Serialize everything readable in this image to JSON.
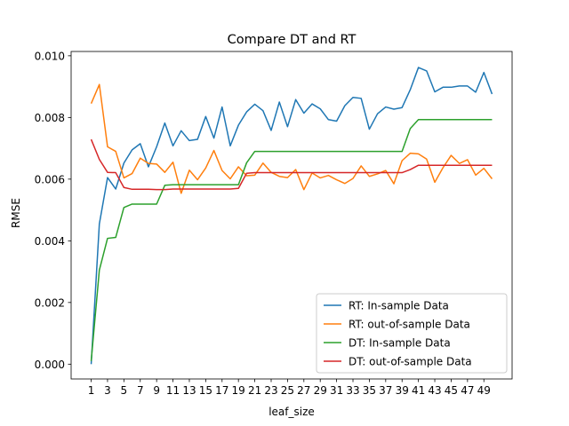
{
  "chart_data": {
    "type": "line",
    "title": "Compare DT and RT",
    "xlabel": "leaf_size",
    "ylabel": "RMSE",
    "x": [
      1,
      2,
      3,
      4,
      5,
      6,
      7,
      8,
      9,
      10,
      11,
      12,
      13,
      14,
      15,
      16,
      17,
      18,
      19,
      20,
      21,
      22,
      23,
      24,
      25,
      26,
      27,
      28,
      29,
      30,
      31,
      32,
      33,
      34,
      35,
      36,
      37,
      38,
      39,
      40,
      41,
      42,
      43,
      44,
      45,
      46,
      47,
      48,
      49,
      50
    ],
    "xticks": [
      "1",
      "3",
      "5",
      "7",
      "9",
      "11",
      "13",
      "15",
      "17",
      "19",
      "21",
      "23",
      "25",
      "27",
      "29",
      "31",
      "33",
      "35",
      "37",
      "39",
      "41",
      "43",
      "45",
      "47",
      "49"
    ],
    "yticks": [
      "0.000",
      "0.002",
      "0.004",
      "0.006",
      "0.008",
      "0.010"
    ],
    "xlim": [
      -1.45,
      52.45
    ],
    "ylim": [
      -0.00048,
      0.01014
    ],
    "grid": false,
    "legend_position": "lower-right",
    "series": [
      {
        "name": "RT: In-sample Data",
        "color": "#1f77b4",
        "values": [
          0.0,
          0.00455,
          0.00605,
          0.00568,
          0.00652,
          0.00695,
          0.00715,
          0.0064,
          0.00705,
          0.00782,
          0.00708,
          0.00757,
          0.00725,
          0.00729,
          0.00803,
          0.00733,
          0.00834,
          0.00708,
          0.00775,
          0.00818,
          0.00843,
          0.00822,
          0.00758,
          0.0085,
          0.0077,
          0.00858,
          0.00814,
          0.00844,
          0.00828,
          0.00793,
          0.00788,
          0.00838,
          0.00865,
          0.00862,
          0.00762,
          0.00812,
          0.00834,
          0.00827,
          0.00832,
          0.0089,
          0.00962,
          0.00951,
          0.00883,
          0.00898,
          0.00898,
          0.00902,
          0.00902,
          0.00882,
          0.00946,
          0.00876
        ]
      },
      {
        "name": "RT: out-of-sample Data",
        "color": "#ff7f0e",
        "values": [
          0.00845,
          0.00907,
          0.00705,
          0.0069,
          0.00604,
          0.00618,
          0.00668,
          0.00651,
          0.00649,
          0.00622,
          0.00655,
          0.00554,
          0.00629,
          0.00598,
          0.00636,
          0.00693,
          0.00628,
          0.00601,
          0.0064,
          0.00611,
          0.00613,
          0.00652,
          0.00622,
          0.00609,
          0.00605,
          0.00631,
          0.00566,
          0.0062,
          0.00604,
          0.00612,
          0.00598,
          0.00586,
          0.00602,
          0.00643,
          0.00609,
          0.00617,
          0.00628,
          0.00585,
          0.0066,
          0.00684,
          0.00682,
          0.00665,
          0.0059,
          0.00637,
          0.00677,
          0.00651,
          0.00663,
          0.00613,
          0.00635,
          0.00601
        ]
      },
      {
        "name": "DT: In-sample Data",
        "color": "#2ca02c",
        "values": [
          0.0001,
          0.00305,
          0.00408,
          0.00411,
          0.00508,
          0.00519,
          0.00519,
          0.00519,
          0.00519,
          0.0058,
          0.00582,
          0.00582,
          0.00582,
          0.00582,
          0.00582,
          0.00582,
          0.00582,
          0.00582,
          0.00582,
          0.00653,
          0.0069,
          0.0069,
          0.0069,
          0.0069,
          0.0069,
          0.0069,
          0.0069,
          0.0069,
          0.0069,
          0.0069,
          0.0069,
          0.0069,
          0.0069,
          0.0069,
          0.0069,
          0.0069,
          0.0069,
          0.0069,
          0.0069,
          0.00764,
          0.00793,
          0.00793,
          0.00793,
          0.00793,
          0.00793,
          0.00793,
          0.00793,
          0.00793,
          0.00793,
          0.00793
        ]
      },
      {
        "name": "DT: out-of-sample Data",
        "color": "#d62728",
        "values": [
          0.00729,
          0.00664,
          0.00622,
          0.00621,
          0.00573,
          0.00567,
          0.00567,
          0.00567,
          0.00566,
          0.00566,
          0.00568,
          0.00568,
          0.00568,
          0.00568,
          0.00568,
          0.00568,
          0.00568,
          0.00568,
          0.0057,
          0.00619,
          0.00621,
          0.00621,
          0.00621,
          0.00621,
          0.00621,
          0.00621,
          0.00621,
          0.00621,
          0.00621,
          0.00621,
          0.00621,
          0.00621,
          0.00621,
          0.00621,
          0.00621,
          0.00621,
          0.00621,
          0.00621,
          0.00621,
          0.00631,
          0.00645,
          0.00645,
          0.00645,
          0.00645,
          0.00645,
          0.00645,
          0.00645,
          0.00645,
          0.00645,
          0.00645
        ]
      }
    ]
  }
}
